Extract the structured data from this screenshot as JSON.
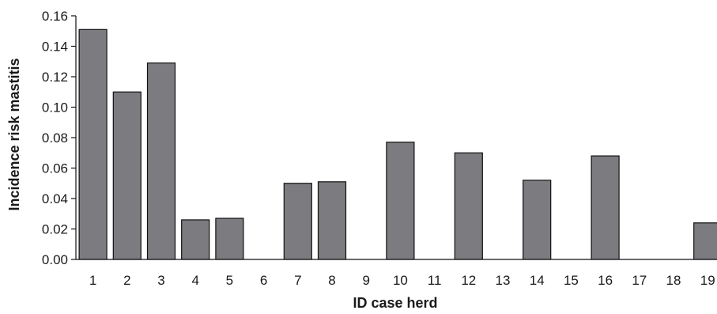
{
  "chart_data": {
    "type": "bar",
    "title": "",
    "xlabel": "ID case herd",
    "ylabel": "Incidence risk mastitis",
    "categories": [
      "1",
      "2",
      "3",
      "4",
      "5",
      "6",
      "7",
      "8",
      "9",
      "10",
      "11",
      "12",
      "13",
      "14",
      "15",
      "16",
      "17",
      "18",
      "19"
    ],
    "values": [
      0.151,
      0.11,
      0.129,
      0.026,
      0.027,
      0.0,
      0.05,
      0.051,
      0.0,
      0.077,
      0.0,
      0.07,
      0.0,
      0.052,
      0.0,
      0.068,
      0.0,
      0.0,
      0.024
    ],
    "ylim": [
      0,
      0.16
    ],
    "yticks": [
      "0.00",
      "0.02",
      "0.04",
      "0.06",
      "0.08",
      "0.10",
      "0.12",
      "0.14",
      "0.16"
    ],
    "grid": false,
    "legend": "none",
    "bar_color": "#7b7b80"
  }
}
